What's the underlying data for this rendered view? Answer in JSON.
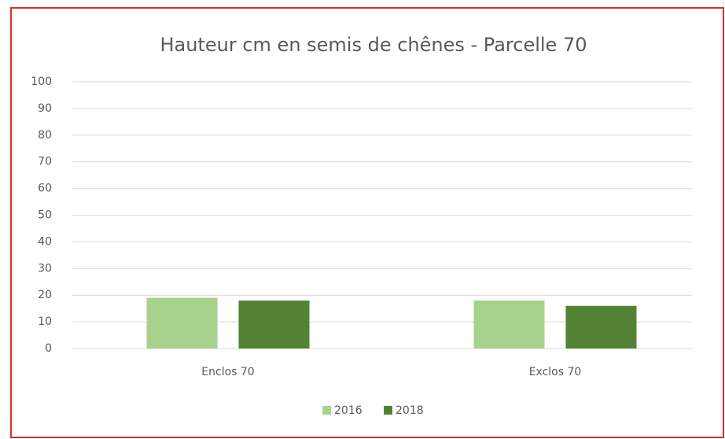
{
  "chart_data": {
    "type": "bar",
    "title": "Hauteur cm en semis de chênes - Parcelle 70",
    "categories": [
      "Enclos 70",
      "Exclos 70"
    ],
    "series": [
      {
        "name": "2016",
        "color": "#a9d18e",
        "values": [
          19,
          18
        ]
      },
      {
        "name": "2018",
        "color": "#548235",
        "values": [
          18,
          16
        ]
      }
    ],
    "ylim": [
      0,
      100
    ],
    "yticks": [
      0,
      10,
      20,
      30,
      40,
      50,
      60,
      70,
      80,
      90,
      100
    ],
    "grid": true,
    "legend": "bottom"
  }
}
